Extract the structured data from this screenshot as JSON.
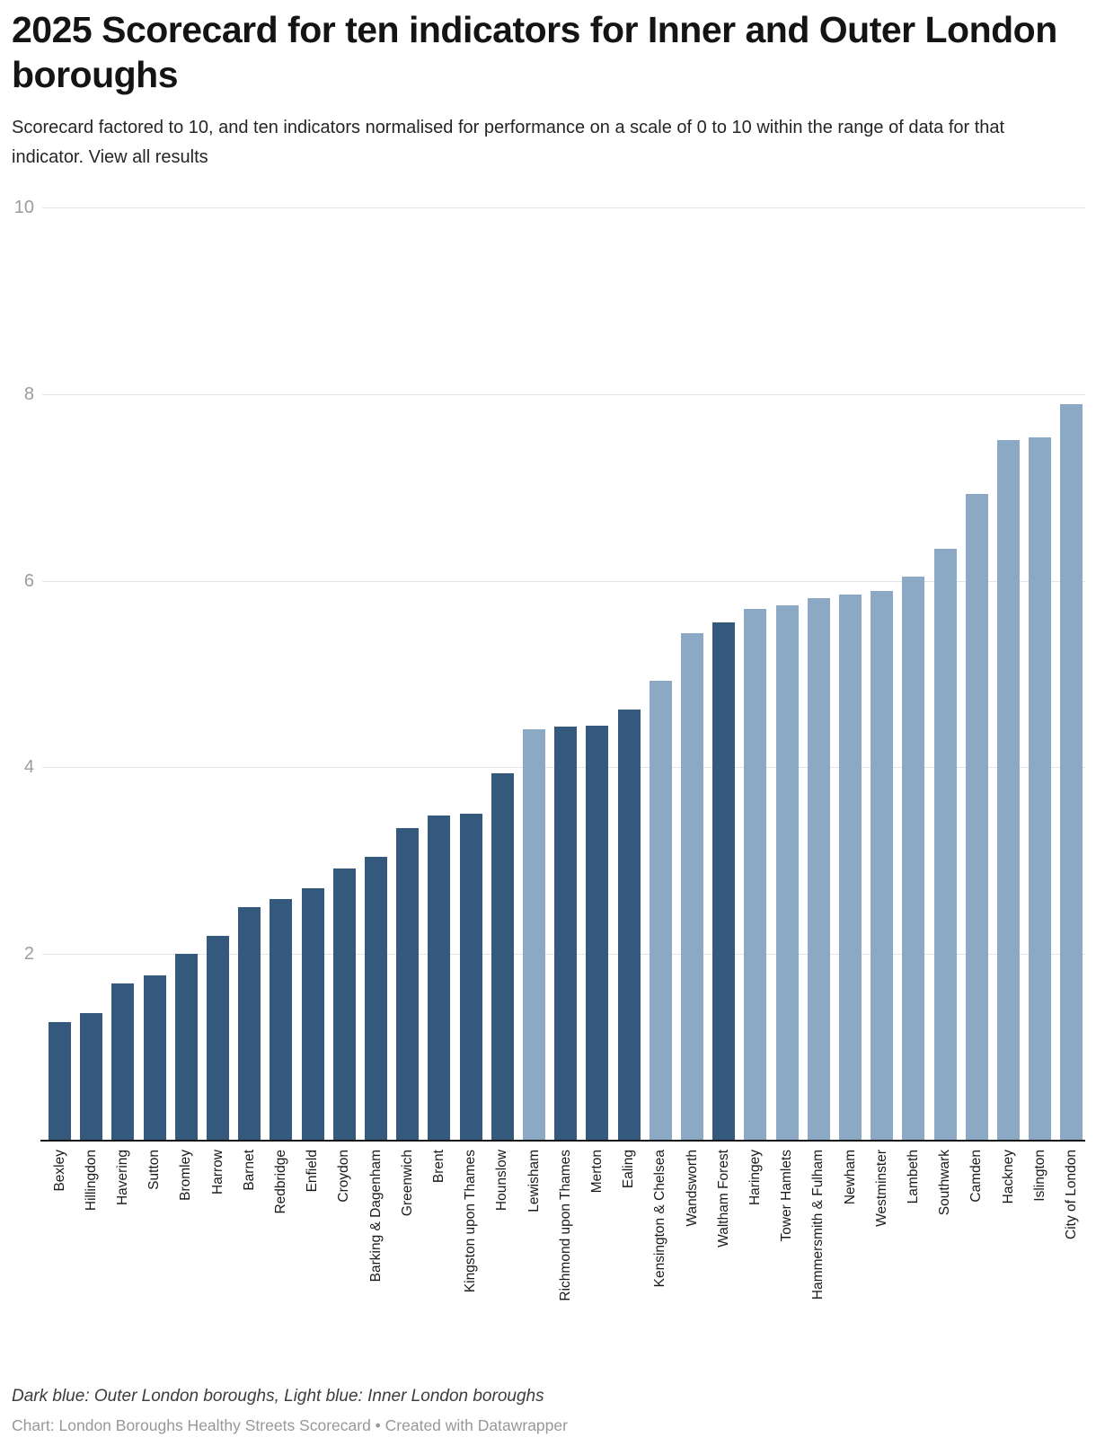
{
  "header": {
    "title": "2025 Scorecard for ten indicators for Inner and Outer London boroughs",
    "subtitle": "Scorecard factored to 10, and ten indicators normalised for performance on a scale of 0 to 10 within the range of data for that indicator.",
    "subtitle_link": "View all results"
  },
  "chart_data": {
    "type": "bar",
    "title": "2025 Scorecard for ten indicators for Inner and Outer London boroughs",
    "xlabel": "",
    "ylabel": "",
    "ylim": [
      0,
      10
    ],
    "yticks": [
      2,
      4,
      6,
      8,
      10
    ],
    "grid": true,
    "legend_position": "footer-note",
    "categories": [
      "Bexley",
      "Hillingdon",
      "Havering",
      "Sutton",
      "Bromley",
      "Harrow",
      "Barnet",
      "Redbridge",
      "Enfield",
      "Croydon",
      "Barking & Dagenham",
      "Greenwich",
      "Brent",
      "Kingston upon Thames",
      "Hounslow",
      "Lewisham",
      "Richmond upon Thames",
      "Merton",
      "Ealing",
      "Kensington & Chelsea",
      "Wandsworth",
      "Waltham Forest",
      "Haringey",
      "Tower Hamlets",
      "Hammersmith & Fulham",
      "Newham",
      "Westminster",
      "Lambeth",
      "Southwark",
      "Camden",
      "Hackney",
      "Islington",
      "City of London"
    ],
    "values": [
      1.27,
      1.37,
      1.68,
      1.77,
      2.0,
      2.19,
      2.5,
      2.59,
      2.7,
      2.92,
      3.04,
      3.35,
      3.48,
      3.5,
      3.94,
      4.41,
      4.44,
      4.45,
      4.62,
      4.93,
      5.44,
      5.55,
      5.7,
      5.74,
      5.81,
      5.85,
      5.89,
      6.04,
      6.34,
      6.93,
      7.51,
      7.54,
      7.89
    ],
    "groups": [
      "outer",
      "outer",
      "outer",
      "outer",
      "outer",
      "outer",
      "outer",
      "outer",
      "outer",
      "outer",
      "outer",
      "outer",
      "outer",
      "outer",
      "outer",
      "inner",
      "outer",
      "outer",
      "outer",
      "inner",
      "inner",
      "outer",
      "inner",
      "inner",
      "inner",
      "inner",
      "inner",
      "inner",
      "inner",
      "inner",
      "inner",
      "inner",
      "inner"
    ],
    "colors": {
      "outer_dark_blue": "#34597C",
      "inner_light_blue": "#8BA8C4",
      "gridline": "#e4e4e4",
      "axis_line": "#161616",
      "tick_label": "#9c9c9c"
    }
  },
  "footer": {
    "legend_note": "Dark blue: Outer London boroughs, Light blue: Inner London boroughs",
    "credit": "Chart: London Boroughs Healthy Streets Scorecard • Created with Datawrapper"
  }
}
